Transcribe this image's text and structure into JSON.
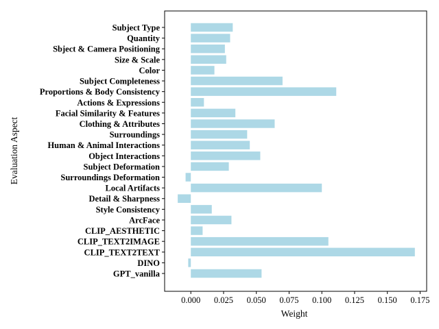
{
  "chart_data": {
    "type": "bar",
    "orientation": "horizontal",
    "xlabel": "Weight",
    "ylabel": "Evaluation Aspect",
    "xlim": [
      -0.02,
      0.18
    ],
    "xticks": [
      0.0,
      0.025,
      0.05,
      0.075,
      0.1,
      0.125,
      0.15,
      0.175
    ],
    "xtick_labels": [
      "0.000",
      "0.025",
      "0.050",
      "0.075",
      "0.100",
      "0.125",
      "0.150",
      "0.175"
    ],
    "bar_color": "#add8e6",
    "grid": false,
    "categories": [
      "Subject Type",
      "Quantity",
      "Sbject & Camera Positioning",
      "Size & Scale",
      "Color",
      "Subject Completeness",
      "Proportions & Body Consistency",
      "Actions & Expressions",
      "Facial Similarity & Features",
      "Clothing & Attributes",
      "Surroundings",
      "Human & Animal Interactions",
      "Object Interactions",
      "Subject Deformation",
      "Surroundings Deformation",
      "Local Artifacts",
      "Detail & Sharpness",
      "Style Consistency",
      "ArcFace",
      "CLIP_AESTHETIC",
      "CLIP_TEXT2IMAGE",
      "CLIP_TEXT2TEXT",
      "DINO",
      "GPT_vanilla"
    ],
    "values": [
      0.032,
      0.03,
      0.026,
      0.027,
      0.018,
      0.07,
      0.111,
      0.01,
      0.034,
      0.064,
      0.043,
      0.045,
      0.053,
      0.029,
      -0.004,
      0.1,
      -0.01,
      0.016,
      0.031,
      0.009,
      0.105,
      0.171,
      -0.002,
      0.054
    ]
  }
}
